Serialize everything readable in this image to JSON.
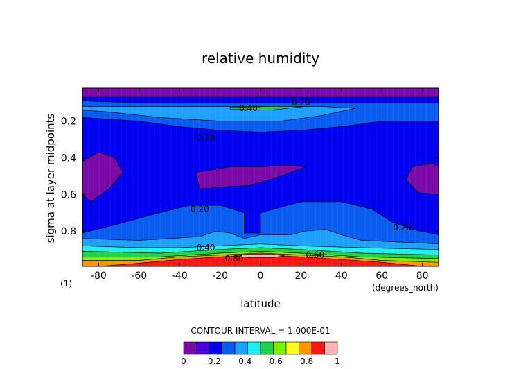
{
  "chart_data": {
    "type": "heatmap",
    "title": "relative humidity",
    "xlabel": "latitude",
    "ylabel": "sigma at layer midpoints",
    "x_units": "(degrees_north)",
    "y_units_note": "(1)",
    "xlim": [
      -88,
      88
    ],
    "ylim": [
      0.992,
      0.02
    ],
    "x_ticks": [
      -80,
      -60,
      -40,
      -20,
      0,
      20,
      40,
      60,
      80
    ],
    "y_ticks": [
      0.2,
      0.4,
      0.6,
      0.8
    ],
    "contour_interval_label": "CONTOUR INTERVAL = 1.000E-01",
    "colorbar": {
      "levels": [
        0,
        0.1,
        0.2,
        0.3,
        0.4,
        0.5,
        0.6,
        0.7,
        0.8,
        0.9,
        1.0
      ],
      "tick_labels": [
        "0",
        "0.2",
        "0.4",
        "0.6",
        "0.8",
        "1"
      ],
      "colors": [
        "#7a0aa8",
        "#4a00d8",
        "#0000f0",
        "#0a5cf0",
        "#1ea0ff",
        "#1ef0f0",
        "#1ed24a",
        "#7cf000",
        "#ffff1e",
        "#ff9600",
        "#ff1414",
        "#ffb4b4"
      ]
    },
    "contour_labels": [
      {
        "text": "0.20",
        "x": 20,
        "y": 0.1
      },
      {
        "text": "0.40",
        "x": -6,
        "y": 0.13
      },
      {
        "text": "0.20",
        "x": -27,
        "y": 0.29
      },
      {
        "text": "0.20",
        "x": -30,
        "y": 0.68
      },
      {
        "text": "0.20",
        "x": 70,
        "y": 0.78
      },
      {
        "text": "0.40",
        "x": -27,
        "y": 0.89
      },
      {
        "text": "0.60",
        "x": 27,
        "y": 0.93
      },
      {
        "text": "0.80",
        "x": -13,
        "y": 0.95
      }
    ],
    "regions": [
      {
        "name": "top-band",
        "level": 0,
        "points": [
          [
            -88,
            0.02
          ],
          [
            88,
            0.02
          ],
          [
            88,
            0.07
          ],
          [
            -88,
            0.07
          ]
        ]
      },
      {
        "name": "background",
        "level": 0.1,
        "points": [
          [
            -88,
            0.07
          ],
          [
            88,
            0.07
          ],
          [
            88,
            0.992
          ],
          [
            -88,
            0.992
          ]
        ]
      },
      {
        "name": "mid-blue-top",
        "level": 0.2,
        "points": [
          [
            -88,
            0.09
          ],
          [
            -60,
            0.1
          ],
          [
            -20,
            0.1
          ],
          [
            20,
            0.1
          ],
          [
            60,
            0.1
          ],
          [
            88,
            0.1
          ],
          [
            88,
            0.2
          ],
          [
            60,
            0.2
          ],
          [
            40,
            0.23
          ],
          [
            20,
            0.25
          ],
          [
            0,
            0.26
          ],
          [
            -20,
            0.25
          ],
          [
            -40,
            0.23
          ],
          [
            -60,
            0.2
          ],
          [
            -88,
            0.18
          ]
        ]
      },
      {
        "name": "cyan-top",
        "level": 0.3,
        "points": [
          [
            -88,
            0.12
          ],
          [
            -80,
            0.12
          ],
          [
            -40,
            0.12
          ],
          [
            0,
            0.12
          ],
          [
            30,
            0.12
          ],
          [
            47,
            0.13
          ],
          [
            30,
            0.17
          ],
          [
            10,
            0.2
          ],
          [
            -20,
            0.2
          ],
          [
            -50,
            0.18
          ],
          [
            -75,
            0.15
          ],
          [
            -88,
            0.14
          ]
        ]
      },
      {
        "name": "green-line-top",
        "level": 0.5,
        "points": [
          [
            -15,
            0.125
          ],
          [
            5,
            0.12
          ],
          [
            22,
            0.12
          ],
          [
            5,
            0.14
          ],
          [
            -15,
            0.135
          ]
        ]
      },
      {
        "name": "low-left",
        "level": 0,
        "points": [
          [
            -88,
            0.42
          ],
          [
            -80,
            0.37
          ],
          [
            -72,
            0.4
          ],
          [
            -68,
            0.48
          ],
          [
            -75,
            0.57
          ],
          [
            -84,
            0.64
          ],
          [
            -88,
            0.6
          ]
        ]
      },
      {
        "name": "low-center",
        "level": 0,
        "points": [
          [
            -32,
            0.48
          ],
          [
            -15,
            0.45
          ],
          [
            0,
            0.45
          ],
          [
            12,
            0.44
          ],
          [
            22,
            0.45
          ],
          [
            10,
            0.5
          ],
          [
            -5,
            0.55
          ],
          [
            -20,
            0.56
          ],
          [
            -30,
            0.57
          ]
        ]
      },
      {
        "name": "low-right",
        "level": 0,
        "points": [
          [
            75,
            0.45
          ],
          [
            85,
            0.43
          ],
          [
            88,
            0.45
          ],
          [
            88,
            0.6
          ],
          [
            78,
            0.59
          ],
          [
            72,
            0.52
          ]
        ]
      },
      {
        "name": "lower-blue",
        "level": 0.2,
        "points": [
          [
            -88,
            0.81
          ],
          [
            -70,
            0.76
          ],
          [
            -50,
            0.7
          ],
          [
            -35,
            0.66
          ],
          [
            -20,
            0.66
          ],
          [
            -8,
            0.7
          ],
          [
            -8,
            0.81
          ],
          [
            0,
            0.81
          ],
          [
            0,
            0.7
          ],
          [
            20,
            0.64
          ],
          [
            40,
            0.64
          ],
          [
            55,
            0.68
          ],
          [
            65,
            0.75
          ],
          [
            75,
            0.79
          ],
          [
            88,
            0.82
          ],
          [
            88,
            0.992
          ],
          [
            -88,
            0.992
          ]
        ]
      },
      {
        "name": "cyan-bottom",
        "level": 0.3,
        "points": [
          [
            -88,
            0.84
          ],
          [
            -60,
            0.85
          ],
          [
            -30,
            0.83
          ],
          [
            -22,
            0.8
          ],
          [
            -15,
            0.81
          ],
          [
            -8,
            0.84
          ],
          [
            0,
            0.82
          ],
          [
            15,
            0.82
          ],
          [
            22,
            0.8
          ],
          [
            32,
            0.79
          ],
          [
            40,
            0.82
          ],
          [
            50,
            0.85
          ],
          [
            70,
            0.86
          ],
          [
            88,
            0.87
          ],
          [
            88,
            0.992
          ],
          [
            -88,
            0.992
          ]
        ]
      },
      {
        "name": "green-bottom",
        "level": 0.4,
        "points": [
          [
            -88,
            0.88
          ],
          [
            -60,
            0.89
          ],
          [
            -40,
            0.89
          ],
          [
            -20,
            0.88
          ],
          [
            0,
            0.87
          ],
          [
            20,
            0.88
          ],
          [
            50,
            0.89
          ],
          [
            88,
            0.9
          ],
          [
            88,
            0.992
          ],
          [
            -88,
            0.992
          ]
        ]
      },
      {
        "name": "lightgreen-bottom",
        "level": 0.5,
        "points": [
          [
            -88,
            0.91
          ],
          [
            -50,
            0.92
          ],
          [
            -20,
            0.9
          ],
          [
            0,
            0.89
          ],
          [
            20,
            0.9
          ],
          [
            50,
            0.92
          ],
          [
            88,
            0.93
          ],
          [
            88,
            0.992
          ],
          [
            -88,
            0.992
          ]
        ]
      },
      {
        "name": "yellow-bottom",
        "level": 0.6,
        "points": [
          [
            -88,
            0.94
          ],
          [
            -50,
            0.94
          ],
          [
            -20,
            0.92
          ],
          [
            0,
            0.91
          ],
          [
            20,
            0.92
          ],
          [
            50,
            0.94
          ],
          [
            88,
            0.95
          ],
          [
            88,
            0.992
          ],
          [
            -88,
            0.992
          ]
        ]
      },
      {
        "name": "orange-bottom",
        "level": 0.8,
        "points": [
          [
            -88,
            0.96
          ],
          [
            -60,
            0.96
          ],
          [
            -40,
            0.94
          ],
          [
            -20,
            0.93
          ],
          [
            0,
            0.92
          ],
          [
            20,
            0.93
          ],
          [
            40,
            0.94
          ],
          [
            60,
            0.96
          ],
          [
            88,
            0.97
          ],
          [
            88,
            0.992
          ],
          [
            -88,
            0.992
          ]
        ]
      },
      {
        "name": "red-bottom",
        "level": 0.9,
        "points": [
          [
            -80,
            0.992
          ],
          [
            -60,
            0.975
          ],
          [
            -40,
            0.955
          ],
          [
            -20,
            0.94
          ],
          [
            0,
            0.93
          ],
          [
            20,
            0.94
          ],
          [
            40,
            0.955
          ],
          [
            60,
            0.97
          ],
          [
            80,
            0.992
          ]
        ]
      },
      {
        "name": "pink-center",
        "level": 1.0,
        "points": [
          [
            -13,
            0.935
          ],
          [
            -5,
            0.925
          ],
          [
            5,
            0.925
          ],
          [
            12,
            0.935
          ],
          [
            5,
            0.945
          ],
          [
            -5,
            0.945
          ]
        ]
      }
    ]
  }
}
